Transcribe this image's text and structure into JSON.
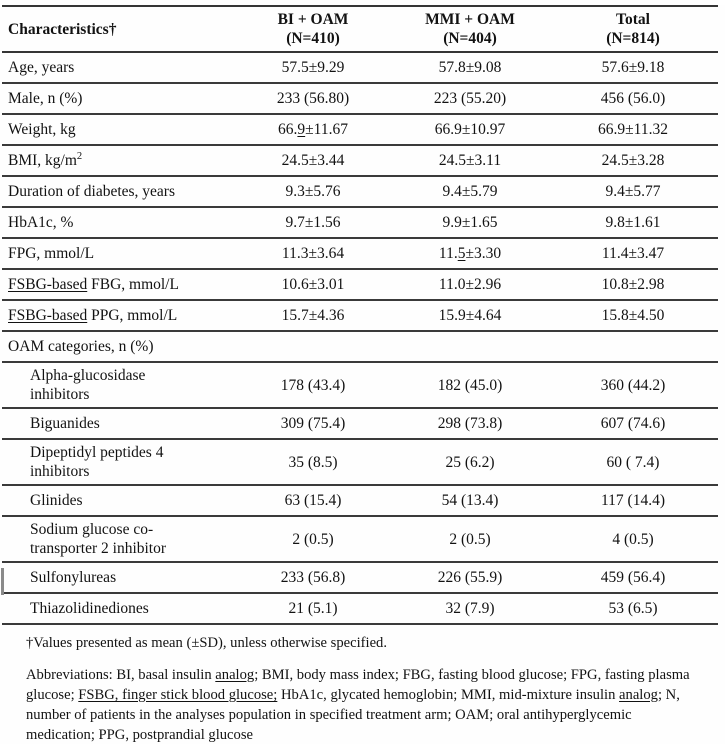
{
  "page": {
    "background": "#ffffff",
    "text_color": "#121212",
    "rule_color": "#3a3a3a"
  },
  "table": {
    "columns": [
      {
        "label": "Characteristics†"
      },
      {
        "label": "BI + OAM",
        "sub": "(N=410)"
      },
      {
        "label": "MMI + OAM",
        "sub": "(N=404)"
      },
      {
        "label": "Total",
        "sub": "(N=814)"
      }
    ],
    "rows": [
      {
        "label": "Age, years",
        "values": [
          "57.5±9.29",
          "57.8±9.08",
          "57.6±9.18"
        ]
      },
      {
        "label": "Male, n (%)",
        "values": [
          "233 (56.80)",
          "223 (55.20)",
          "456 (56.0)"
        ]
      },
      {
        "label": "Weight, kg",
        "values": [
          [
            {
              "t": "66."
            },
            {
              "t": "9",
              "u": true
            },
            {
              "t": "±11.67"
            }
          ],
          "66.9±10.97",
          "66.9±11.32"
        ]
      },
      {
        "label_runs": [
          {
            "t": "BMI, kg/m"
          },
          {
            "t": "2",
            "sup": true
          }
        ],
        "values": [
          "24.5±3.44",
          "24.5±3.11",
          "24.5±3.28"
        ]
      },
      {
        "label": "Duration of diabetes, years",
        "values": [
          "9.3±5.76",
          "9.4±5.79",
          "9.4±5.77"
        ]
      },
      {
        "label": "HbA1c, %",
        "values": [
          "9.7±1.56",
          "9.9±1.65",
          "9.8±1.61"
        ]
      },
      {
        "label": "FPG, mmol/L",
        "values": [
          "11.3±3.64",
          [
            {
              "t": "11."
            },
            {
              "t": "5",
              "u": true
            },
            {
              "t": "±3.30"
            }
          ],
          "11.4±3.47"
        ]
      },
      {
        "label_runs": [
          {
            "t": "FSBG-based",
            "u": true
          },
          {
            "t": " FBG, mmol/L"
          }
        ],
        "values": [
          "10.6±3.01",
          "11.0±2.96",
          "10.8±2.98"
        ]
      },
      {
        "label_runs": [
          {
            "t": "FSBG-based",
            "u": true
          },
          {
            "t": " PPG, mmol/L"
          }
        ],
        "values": [
          "15.7±4.36",
          "15.9±4.64",
          "15.8±4.50"
        ]
      },
      {
        "label": "OAM categories, n (%)",
        "section": true,
        "values": [
          "",
          "",
          ""
        ]
      },
      {
        "label": "Alpha-glucosidase\ninhibitors",
        "indent": true,
        "values": [
          "178 (43.4)",
          "182 (45.0)",
          "360 (44.2)"
        ]
      },
      {
        "label": "Biguanides",
        "indent": true,
        "values": [
          "309 (75.4)",
          "298 (73.8)",
          "607 (74.6)"
        ]
      },
      {
        "label": "Dipeptidyl peptides 4\ninhibitors",
        "indent": true,
        "values": [
          "35 (8.5)",
          "25 (6.2)",
          "60 ( 7.4)"
        ]
      },
      {
        "label": "Glinides",
        "indent": true,
        "values": [
          "63 (15.4)",
          "54 (13.4)",
          "117 (14.4)"
        ]
      },
      {
        "label": "Sodium glucose co-\ntransporter 2 inhibitor",
        "indent": true,
        "values": [
          "2 (0.5)",
          "2 (0.5)",
          "4 (0.5)"
        ]
      },
      {
        "label": "Sulfonylureas",
        "indent": true,
        "values": [
          "233 (56.8)",
          "226 (55.9)",
          "459 (56.4)"
        ]
      },
      {
        "label": "Thiazolidinediones",
        "indent": true,
        "values": [
          "21 (5.1)",
          "32 (7.9)",
          "53 (6.5)"
        ]
      }
    ]
  },
  "footnotes": {
    "values_note": "†Values presented as mean (±SD), unless otherwise specified.",
    "abbreviations_runs": [
      {
        "t": "Abbreviations: BI, basal insulin  "
      },
      {
        "t": "analog",
        "u": true
      },
      {
        "t": "; BMI, body mass index; FBG, fasting blood glucose; FPG, fasting plasma glucose; "
      },
      {
        "t": "FSBG, finger stick blood glucose;",
        "u": true
      },
      {
        "t": " HbA1c, glycated hemoglobin; MMI, mid-mixture insulin "
      },
      {
        "t": "analog",
        "u": true
      },
      {
        "t": "; N, number of patients in the analyses population in specified treatment arm; OAM; oral antihyperglycemic medication; PPG, postprandial glucose"
      }
    ]
  }
}
